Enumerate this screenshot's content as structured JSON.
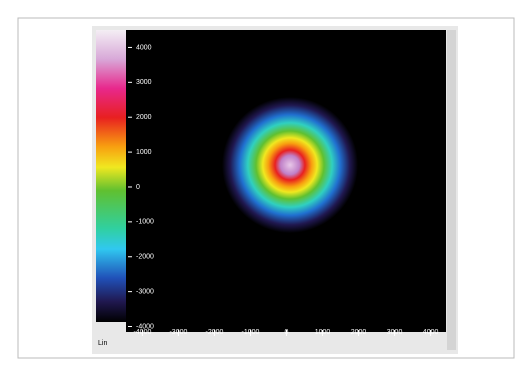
{
  "chart_data": {
    "type": "heatmap",
    "xlim": [
      -4400,
      4400
    ],
    "ylim": [
      -4100,
      4500
    ],
    "xticks": [
      -4000,
      -3000,
      -2000,
      -1000,
      0,
      1000,
      2000,
      3000,
      4000
    ],
    "yticks": [
      4000,
      3000,
      2000,
      1000,
      0,
      -1000,
      -2000,
      -3000,
      -4000
    ],
    "colorbar_label": "Lin",
    "grid": false
  }
}
